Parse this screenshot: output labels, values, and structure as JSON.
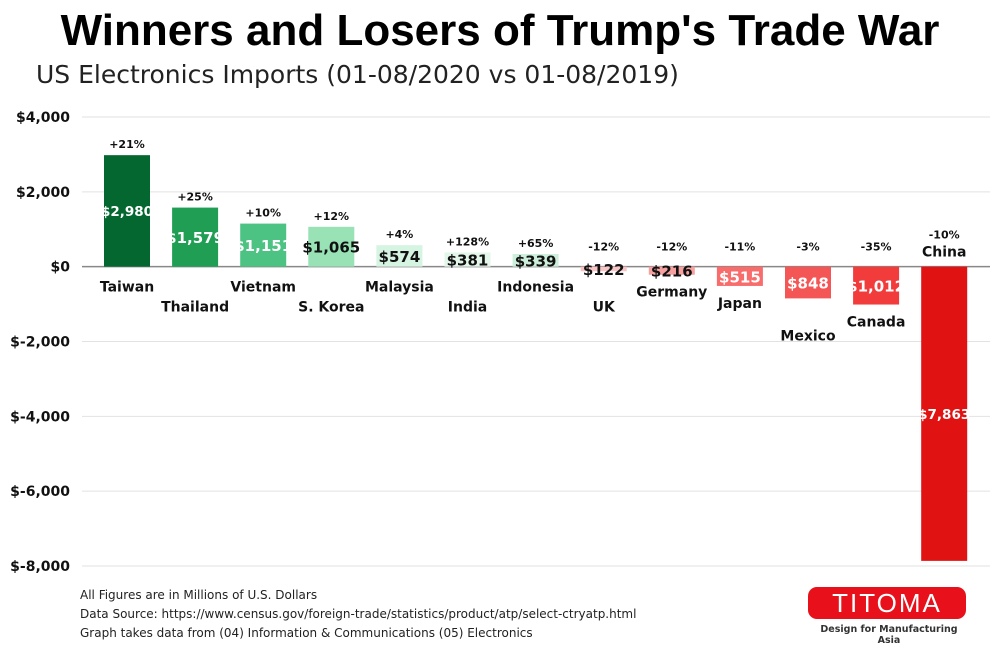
{
  "chart_data": {
    "type": "bar",
    "title": "Winners and Losers of Trump's Trade War",
    "subtitle": "US Electronics Imports (01-08/2020 vs 01-08/2019)",
    "categories": [
      "Taiwan",
      "Thailand",
      "Vietnam",
      "S. Korea",
      "Malaysia",
      "India",
      "Indonesia",
      "UK",
      "Germany",
      "Japan",
      "Mexico",
      "Canada",
      "China"
    ],
    "values": [
      2980,
      1579,
      1151,
      1065,
      574,
      381,
      339,
      -122,
      -216,
      -515,
      -848,
      -1012,
      -7863
    ],
    "value_labels": [
      "$2,980",
      "$1,579",
      "$1,151",
      "$1,065",
      "$574",
      "$381",
      "$339",
      "$122",
      "$216",
      "$515",
      "$848",
      "$1,012",
      "$7,863"
    ],
    "pct_labels": [
      "+21%",
      "+25%",
      "+10%",
      "+12%",
      "+4%",
      "+128%",
      "+65%",
      "-12%",
      "-12%",
      "-11%",
      "-3%",
      "-35%",
      "-10%"
    ],
    "colors": [
      "#04672f",
      "#1f9e54",
      "#4cc382",
      "#98e2b6",
      "#d6f4e2",
      "#e3f6ea",
      "#cdeedb",
      "#f9c4c4",
      "#f6a0a0",
      "#f86c6c",
      "#f45656",
      "#f23c3c",
      "#e11212"
    ],
    "value_text_colors": [
      "#ffffff",
      "#ffffff",
      "#ffffff",
      "#111111",
      "#111111",
      "#111111",
      "#111111",
      "#111111",
      "#111111",
      "#ffffff",
      "#ffffff",
      "#ffffff",
      "#ffffff"
    ],
    "ylim": [
      -8000,
      4000
    ],
    "yticks": [
      4000,
      2000,
      0,
      -2000,
      -4000,
      -6000,
      -8000
    ],
    "ytick_labels": [
      "$4,000",
      "$2,000",
      "$0",
      "$-2,000",
      "$-4,000",
      "$-6,000",
      "$-8,000"
    ],
    "grid": true,
    "legend": "none",
    "xlabel": "",
    "ylabel": ""
  },
  "notes": [
    "All Figures are in Millions of U.S. Dollars",
    "Data Source: https://www.census.gov/foreign-trade/statistics/product/atp/select-ctryatp.html",
    "Graph takes data from (04) Information & Communications (05) Electronics"
  ],
  "logo": {
    "name": "TITOMA",
    "tagline": "Design for Manufacturing Asia"
  }
}
